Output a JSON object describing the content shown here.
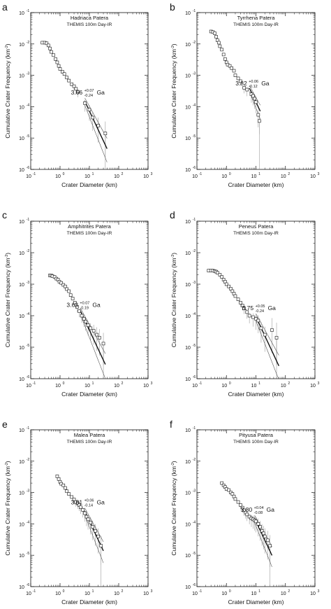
{
  "figure": {
    "x_axis_label": "Crater Diameter (km)",
    "y_axis_label": "Cumulative Crater Frequency (km",
    "y_axis_label_sup": "-2",
    "y_axis_label_end": ")",
    "x_tick_labels": [
      "10",
      "10",
      "10",
      "10",
      "10"
    ],
    "x_tick_exponents": [
      "-1",
      "0",
      "1",
      "2",
      "3"
    ],
    "y_tick_labels": [
      "10",
      "10",
      "10",
      "10",
      "10",
      "10"
    ],
    "y_tick_exponents": [
      "-6",
      "-5",
      "-4",
      "-3",
      "-2",
      "-1"
    ],
    "age_unit": "Ga"
  },
  "chart_data": [
    {
      "type": "scatter",
      "letter": "a",
      "title": "Hadriaca Patera",
      "subtitle": "THEMIS 100m Day-IR",
      "xscale": "log",
      "yscale": "log",
      "xlim": [
        0.1,
        1000
      ],
      "ylim": [
        1e-06,
        0.1
      ],
      "xlabel": "Crater Diameter (km)",
      "ylabel": "Cumulative Crater Frequency (km-2)",
      "age": {
        "value": "3.66",
        "plus": "+0.07",
        "minus": "-0.24",
        "unit": "Ga"
      },
      "points": [
        [
          0.25,
          0.011
        ],
        [
          0.3,
          0.011
        ],
        [
          0.35,
          0.0105
        ],
        [
          0.4,
          0.009
        ],
        [
          0.45,
          0.0072
        ],
        [
          0.5,
          0.0056
        ],
        [
          0.6,
          0.0044
        ],
        [
          0.7,
          0.0033
        ],
        [
          0.8,
          0.0026
        ],
        [
          0.9,
          0.002
        ],
        [
          1.0,
          0.0016
        ],
        [
          1.2,
          0.0013
        ],
        [
          1.4,
          0.0011
        ],
        [
          1.7,
          0.00085
        ],
        [
          2.0,
          0.00068
        ],
        [
          2.5,
          0.00052
        ],
        [
          3.0,
          0.00045
        ],
        [
          3.5,
          0.00037
        ],
        [
          4.0,
          0.0003
        ],
        [
          7.0,
          0.00013
        ],
        [
          10,
          8e-05
        ],
        [
          13,
          4.5e-05
        ],
        [
          20,
          2.5e-05
        ],
        [
          35,
          1.4e-05
        ]
      ],
      "fit_range": [
        7,
        40
      ]
    },
    {
      "type": "scatter",
      "letter": "b",
      "title": "Tyrrhena Patera",
      "subtitle": "THEMIS 100m Day-IR",
      "xscale": "log",
      "yscale": "log",
      "xlim": [
        0.1,
        1000
      ],
      "ylim": [
        1e-06,
        0.1
      ],
      "xlabel": "Crater Diameter (km)",
      "ylabel": "Cumulative Crater Frequency (km-2)",
      "age": {
        "value": "3.82",
        "plus": "+0.06",
        "minus": "-0.12",
        "unit": "Ga"
      },
      "points": [
        [
          0.3,
          0.025
        ],
        [
          0.35,
          0.024
        ],
        [
          0.4,
          0.022
        ],
        [
          0.45,
          0.017
        ],
        [
          0.5,
          0.013
        ],
        [
          0.55,
          0.011
        ],
        [
          0.6,
          0.0085
        ],
        [
          0.7,
          0.0066
        ],
        [
          0.8,
          0.0046
        ],
        [
          0.9,
          0.0033
        ],
        [
          1.0,
          0.0026
        ],
        [
          1.1,
          0.0022
        ],
        [
          1.3,
          0.002
        ],
        [
          1.5,
          0.0017
        ],
        [
          1.8,
          0.0014
        ],
        [
          2.0,
          0.001
        ],
        [
          2.5,
          0.0008
        ],
        [
          3.0,
          0.00065
        ],
        [
          4.0,
          0.0004
        ],
        [
          5.0,
          0.00035
        ],
        [
          7.0,
          0.00025
        ],
        [
          8.0,
          0.00022
        ],
        [
          9.0,
          0.00018
        ],
        [
          10.0,
          0.00014
        ],
        [
          12.0,
          5.5e-05
        ],
        [
          13.0,
          3.5e-05
        ]
      ],
      "fit_range": [
        6,
        14
      ]
    },
    {
      "type": "scatter",
      "letter": "c",
      "title": "Amphitrites Patera",
      "subtitle": "THEMIS 100m Day-IR",
      "xscale": "log",
      "yscale": "log",
      "xlim": [
        0.1,
        1000
      ],
      "ylim": [
        1e-06,
        0.1
      ],
      "xlabel": "Crater Diameter (km)",
      "ylabel": "Cumulative Crater Frequency (km-2)",
      "age": {
        "value": "3.63",
        "plus": "+0.07",
        "minus": "-0.19",
        "unit": "Ga"
      },
      "points": [
        [
          0.45,
          0.0019
        ],
        [
          0.5,
          0.0019
        ],
        [
          0.55,
          0.0018
        ],
        [
          0.65,
          0.0017
        ],
        [
          0.75,
          0.0015
        ],
        [
          0.85,
          0.0014
        ],
        [
          0.95,
          0.0012
        ],
        [
          1.1,
          0.0011
        ],
        [
          1.3,
          0.00095
        ],
        [
          1.5,
          0.00085
        ],
        [
          1.7,
          0.0007
        ],
        [
          2.0,
          0.0006
        ],
        [
          2.3,
          0.00045
        ],
        [
          2.7,
          0.00035
        ],
        [
          3.2,
          0.00026
        ],
        [
          3.8,
          0.00019
        ],
        [
          4.5,
          0.00014
        ],
        [
          5.5,
          0.0001
        ],
        [
          6.5,
          8e-05
        ],
        [
          7.5,
          6.5e-05
        ],
        [
          9.0,
          5e-05
        ],
        [
          11.0,
          4e-05
        ],
        [
          14.0,
          3.3e-05
        ],
        [
          18.0,
          2.5e-05
        ],
        [
          22.0,
          2e-05
        ],
        [
          30.0,
          1.3e-05
        ]
      ],
      "fit_range": [
        5,
        35
      ]
    },
    {
      "type": "scatter",
      "letter": "d",
      "title": "Peneus Patera",
      "subtitle": "THEMIS 100m Day-IR",
      "xscale": "log",
      "yscale": "log",
      "xlim": [
        0.1,
        1000
      ],
      "ylim": [
        1e-06,
        0.1
      ],
      "xlabel": "Crater Diameter (km)",
      "ylabel": "Cumulative Crater Frequency (km-2)",
      "age": {
        "value": "3.75",
        "plus": "+0.05",
        "minus": "-0.24",
        "unit": "Ga"
      },
      "points": [
        [
          0.25,
          0.0027
        ],
        [
          0.3,
          0.0027
        ],
        [
          0.35,
          0.0027
        ],
        [
          0.4,
          0.0026
        ],
        [
          0.45,
          0.0025
        ],
        [
          0.5,
          0.0023
        ],
        [
          0.6,
          0.002
        ],
        [
          0.7,
          0.0017
        ],
        [
          0.8,
          0.0014
        ],
        [
          0.9,
          0.0012
        ],
        [
          1.0,
          0.001
        ],
        [
          1.2,
          0.00085
        ],
        [
          1.4,
          0.00072
        ],
        [
          1.6,
          0.0006
        ],
        [
          1.8,
          0.0005
        ],
        [
          2.0,
          0.00042
        ],
        [
          2.5,
          0.00033
        ],
        [
          3.0,
          0.00026
        ],
        [
          3.5,
          0.00021
        ],
        [
          4.0,
          0.00017
        ],
        [
          5.0,
          0.00013
        ],
        [
          6.0,
          0.0001
        ],
        [
          8.0,
          9e-05
        ],
        [
          10.0,
          8e-05
        ],
        [
          12.0,
          7e-05
        ],
        [
          15.0,
          4e-05
        ],
        [
          20.0,
          2.5e-05
        ],
        [
          35.0,
          3.5e-05
        ],
        [
          50.0,
          2e-05
        ]
      ],
      "fit_range": [
        10,
        60
      ]
    },
    {
      "type": "scatter",
      "letter": "e",
      "title": "Malea Patera",
      "subtitle": "THEMIS 100m Day-IR",
      "xscale": "log",
      "yscale": "log",
      "xlim": [
        0.1,
        1000
      ],
      "ylim": [
        1e-06,
        0.1
      ],
      "xlabel": "Crater Diameter (km)",
      "ylabel": "Cumulative Crater Frequency (km-2)",
      "age": {
        "value": "3.81",
        "plus": "+0.06",
        "minus": "-0.14",
        "unit": "Ga"
      },
      "points": [
        [
          0.8,
          0.0033
        ],
        [
          0.9,
          0.0027
        ],
        [
          1.0,
          0.0022
        ],
        [
          1.1,
          0.0019
        ],
        [
          1.3,
          0.0017
        ],
        [
          1.5,
          0.0014
        ],
        [
          1.7,
          0.0011
        ],
        [
          2.0,
          0.0009
        ],
        [
          2.5,
          0.00072
        ],
        [
          3.0,
          0.0006
        ],
        [
          3.5,
          0.0005
        ],
        [
          4.0,
          0.00045
        ],
        [
          4.5,
          0.0004
        ],
        [
          5.0,
          0.00034
        ],
        [
          6.0,
          0.00028
        ],
        [
          7.0,
          0.00022
        ],
        [
          8.0,
          0.00017
        ],
        [
          9.0,
          0.00014
        ],
        [
          11.0,
          0.00011
        ],
        [
          13.0,
          8e-05
        ],
        [
          16.0,
          6e-05
        ],
        [
          20.0,
          4e-05
        ],
        [
          25.0,
          2e-05
        ]
      ],
      "fit_range": [
        7,
        30
      ]
    },
    {
      "type": "scatter",
      "letter": "f",
      "title": "Pityusa Patera",
      "subtitle": "THEMIS 100m Day-IR",
      "xscale": "log",
      "yscale": "log",
      "xlim": [
        0.1,
        1000
      ],
      "ylim": [
        1e-06,
        0.1
      ],
      "xlabel": "Crater Diameter (km)",
      "ylabel": "Cumulative Crater Frequency (km-2)",
      "age": {
        "value": "3.80",
        "plus": "+0.04",
        "minus": "-0.08",
        "unit": "Ga"
      },
      "points": [
        [
          0.7,
          0.002
        ],
        [
          0.8,
          0.0017
        ],
        [
          0.9,
          0.0015
        ],
        [
          1.0,
          0.0013
        ],
        [
          1.2,
          0.0012
        ],
        [
          1.4,
          0.001
        ],
        [
          1.6,
          0.0009
        ],
        [
          1.8,
          0.00075
        ],
        [
          2.0,
          0.00062
        ],
        [
          2.5,
          0.0005
        ],
        [
          3.0,
          0.0004
        ],
        [
          3.5,
          0.00033
        ],
        [
          4.0,
          0.00027
        ],
        [
          4.5,
          0.00023
        ],
        [
          5.0,
          0.0002
        ],
        [
          6.0,
          0.00017
        ],
        [
          7.0,
          0.00015
        ],
        [
          8.0,
          0.00014
        ],
        [
          9.0,
          0.00013
        ],
        [
          10.0,
          0.00012
        ],
        [
          12.0,
          0.0001
        ],
        [
          14.0,
          8e-05
        ],
        [
          16.0,
          6e-05
        ],
        [
          18.0,
          5e-05
        ],
        [
          20.0,
          4e-05
        ],
        [
          25.0,
          3e-05
        ],
        [
          30.0,
          2e-05
        ]
      ],
      "fit_range": [
        9,
        35
      ]
    }
  ]
}
